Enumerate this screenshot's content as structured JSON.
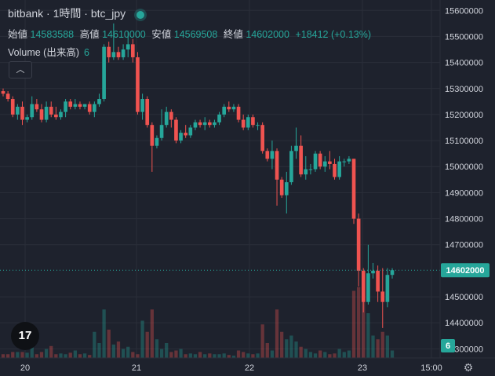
{
  "header": {
    "title": "bitbank · 1時間 · btc_jpy",
    "open_label": "始値",
    "open_value": "14583588",
    "high_label": "高値",
    "high_value": "14610000",
    "low_label": "安値",
    "low_value": "14569508",
    "close_label": "終値",
    "close_value": "14602000",
    "change": "+18412 (+0.13%)"
  },
  "volume_pane": {
    "label": "Volume (出来高)",
    "value": "6",
    "badge": "6"
  },
  "colors": {
    "up": "#26a69a",
    "down": "#ef5350",
    "background": "#1e222d",
    "grid": "#2a2e39"
  },
  "icons": {
    "collapse": "chevron-up-icon",
    "logo": "tradingview-logo",
    "settings": "gear-icon"
  },
  "logo_text": "17",
  "chart_data": {
    "type": "candlestick",
    "y_ticks": [
      "15600000",
      "15500000",
      "15400000",
      "15300000",
      "15200000",
      "15100000",
      "15000000",
      "14900000",
      "14800000",
      "14700000",
      "14500000",
      "14400000",
      "14300000"
    ],
    "ylim": [
      14265000,
      15640000
    ],
    "x_ticks": [
      "20",
      "21",
      "22",
      "23",
      "15:00"
    ],
    "last_price": 14602000,
    "last_price_label": "14602000",
    "candles": [
      [
        15290000,
        15300000,
        15270000,
        15280000
      ],
      [
        15280000,
        15290000,
        15250000,
        15260000
      ],
      [
        15260000,
        15270000,
        15190000,
        15200000
      ],
      [
        15200000,
        15240000,
        15180000,
        15230000
      ],
      [
        15230000,
        15250000,
        15160000,
        15180000
      ],
      [
        15180000,
        15200000,
        15170000,
        15190000
      ],
      [
        15190000,
        15270000,
        15180000,
        15240000
      ],
      [
        15240000,
        15260000,
        15210000,
        15220000
      ],
      [
        15220000,
        15240000,
        15170000,
        15180000
      ],
      [
        15180000,
        15250000,
        15170000,
        15230000
      ],
      [
        15230000,
        15250000,
        15190000,
        15200000
      ],
      [
        15200000,
        15230000,
        15180000,
        15190000
      ],
      [
        15190000,
        15220000,
        15180000,
        15210000
      ],
      [
        15210000,
        15260000,
        15190000,
        15250000
      ],
      [
        15250000,
        15260000,
        15220000,
        15230000
      ],
      [
        15230000,
        15260000,
        15220000,
        15240000
      ],
      [
        15240000,
        15250000,
        15220000,
        15230000
      ],
      [
        15230000,
        15240000,
        15220000,
        15240000
      ],
      [
        15240000,
        15250000,
        15200000,
        15210000
      ],
      [
        15210000,
        15250000,
        15190000,
        15240000
      ],
      [
        15240000,
        15280000,
        15230000,
        15260000
      ],
      [
        15260000,
        15470000,
        15250000,
        15460000
      ],
      [
        15460000,
        15480000,
        15400000,
        15420000
      ],
      [
        15420000,
        15550000,
        15410000,
        15440000
      ],
      [
        15440000,
        15460000,
        15410000,
        15420000
      ],
      [
        15420000,
        15470000,
        15410000,
        15450000
      ],
      [
        15450000,
        15520000,
        15420000,
        15470000
      ],
      [
        15470000,
        15490000,
        15400000,
        15420000
      ],
      [
        15420000,
        15440000,
        15200000,
        15210000
      ],
      [
        15210000,
        15280000,
        15180000,
        15260000
      ],
      [
        15260000,
        15270000,
        15150000,
        15160000
      ],
      [
        15160000,
        15170000,
        14980000,
        15080000
      ],
      [
        15080000,
        15120000,
        15070000,
        15110000
      ],
      [
        15110000,
        15220000,
        15100000,
        15160000
      ],
      [
        15160000,
        15230000,
        15150000,
        15210000
      ],
      [
        15210000,
        15220000,
        15150000,
        15180000
      ],
      [
        15180000,
        15190000,
        15090000,
        15100000
      ],
      [
        15100000,
        15140000,
        15090000,
        15130000
      ],
      [
        15130000,
        15160000,
        15110000,
        15120000
      ],
      [
        15120000,
        15160000,
        15110000,
        15150000
      ],
      [
        15150000,
        15180000,
        15140000,
        15170000
      ],
      [
        15170000,
        15180000,
        15150000,
        15160000
      ],
      [
        15160000,
        15190000,
        15140000,
        15170000
      ],
      [
        15170000,
        15180000,
        15150000,
        15160000
      ],
      [
        15160000,
        15180000,
        15150000,
        15170000
      ],
      [
        15170000,
        15210000,
        15160000,
        15200000
      ],
      [
        15200000,
        15240000,
        15190000,
        15230000
      ],
      [
        15230000,
        15250000,
        15210000,
        15220000
      ],
      [
        15220000,
        15240000,
        15210000,
        15230000
      ],
      [
        15230000,
        15240000,
        15170000,
        15180000
      ],
      [
        15180000,
        15200000,
        15140000,
        15150000
      ],
      [
        15150000,
        15200000,
        15140000,
        15190000
      ],
      [
        15190000,
        15200000,
        15150000,
        15160000
      ],
      [
        15160000,
        15170000,
        15140000,
        15160000
      ],
      [
        15160000,
        15170000,
        15050000,
        15060000
      ],
      [
        15060000,
        15070000,
        15020000,
        15030000
      ],
      [
        15030000,
        15100000,
        14990000,
        15060000
      ],
      [
        15060000,
        15070000,
        14850000,
        14950000
      ],
      [
        14950000,
        14960000,
        14880000,
        14890000
      ],
      [
        14890000,
        14980000,
        14820000,
        14940000
      ],
      [
        14940000,
        15080000,
        14930000,
        15060000
      ],
      [
        15060000,
        15150000,
        15030000,
        15080000
      ],
      [
        15080000,
        15120000,
        14960000,
        14970000
      ],
      [
        14970000,
        15040000,
        14950000,
        14990000
      ],
      [
        14990000,
        15010000,
        14970000,
        14990000
      ],
      [
        14990000,
        15060000,
        14980000,
        15050000
      ],
      [
        15050000,
        15060000,
        14990000,
        15000000
      ],
      [
        15000000,
        15040000,
        14980000,
        15020000
      ],
      [
        15020000,
        15060000,
        14990000,
        15010000
      ],
      [
        15010000,
        15030000,
        14950000,
        14960000
      ],
      [
        14960000,
        15040000,
        14950000,
        15020000
      ],
      [
        15020000,
        15030000,
        15000000,
        15020000
      ],
      [
        15020000,
        15040000,
        15010000,
        15030000
      ],
      [
        15030000,
        15030000,
        14780000,
        14800000
      ],
      [
        14800000,
        14820000,
        14540000,
        14600000
      ],
      [
        14600000,
        14610000,
        14440000,
        14480000
      ],
      [
        14480000,
        14700000,
        14470000,
        14590000
      ],
      [
        14590000,
        14630000,
        14570000,
        14600000
      ],
      [
        14600000,
        14620000,
        14480000,
        14520000
      ],
      [
        14520000,
        14610000,
        14380000,
        14480000
      ],
      [
        14480000,
        14610000,
        14460000,
        14584000
      ],
      [
        14584000,
        14610000,
        14570000,
        14602000
      ]
    ],
    "volumes": [
      0.05,
      0.05,
      0.08,
      0.08,
      0.08,
      0.07,
      0.2,
      0.05,
      0.08,
      0.12,
      0.16,
      0.05,
      0.06,
      0.05,
      0.07,
      0.1,
      0.05,
      0.06,
      0.04,
      0.35,
      0.2,
      0.65,
      0.38,
      0.18,
      0.22,
      0.12,
      0.15,
      0.08,
      0.05,
      0.5,
      0.35,
      0.65,
      0.25,
      0.12,
      0.2,
      0.08,
      0.1,
      0.12,
      0.05,
      0.06,
      0.05,
      0.08,
      0.05,
      0.06,
      0.05,
      0.05,
      0.06,
      0.04,
      0.03,
      0.1,
      0.08,
      0.06,
      0.05,
      0.06,
      0.45,
      0.2,
      0.1,
      0.65,
      0.35,
      0.25,
      0.3,
      0.22,
      0.15,
      0.12,
      0.08,
      0.06,
      0.1,
      0.08,
      0.05,
      0.06,
      0.12,
      0.08,
      0.1,
      0.9,
      0.95,
      0.85,
      0.6,
      0.3,
      0.25,
      0.35,
      0.3,
      0.1
    ]
  }
}
